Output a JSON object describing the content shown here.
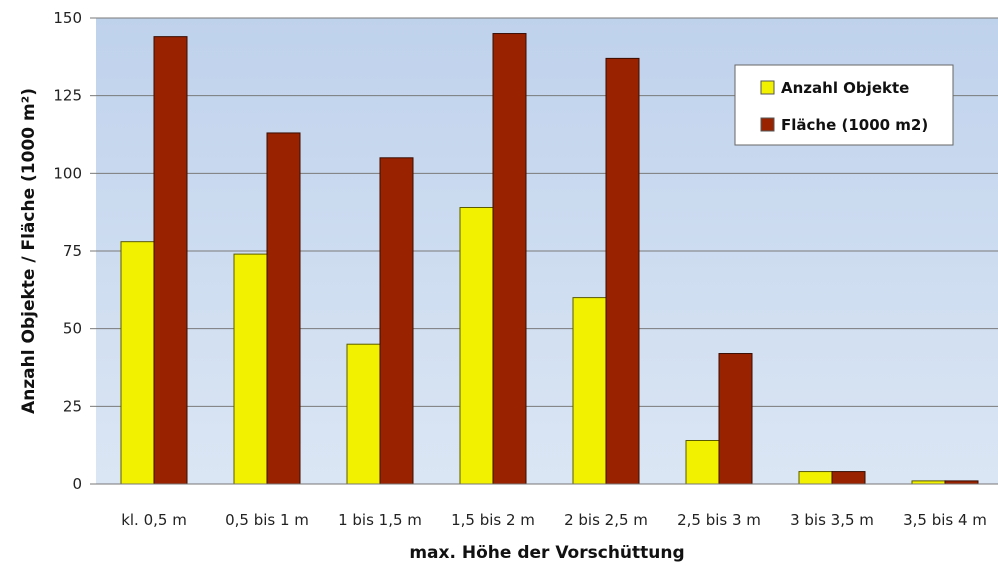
{
  "chart_data": {
    "type": "bar",
    "xlabel": "max. Höhe der Vorschüttung",
    "ylabel": "Anzahl Objekte / Fläche (1000 m²)",
    "ylim": [
      0,
      150
    ],
    "yticks": [
      "0",
      "25",
      "50",
      "75",
      "100",
      "125",
      "150"
    ],
    "grid": true,
    "legend_position": "top-right",
    "categories": [
      "kl. 0,5 m",
      "0,5 bis 1 m",
      "1 bis 1,5 m",
      "1,5 bis 2 m",
      "2 bis 2,5 m",
      "2,5 bis 3 m",
      "3 bis 3,5 m",
      "3,5 bis 4 m"
    ],
    "series": [
      {
        "name": "Anzahl Objekte",
        "color": "#f2f200",
        "values": [
          78,
          74,
          45,
          89,
          60,
          14,
          4,
          1
        ]
      },
      {
        "name": "Fläche (1000 m2)",
        "color": "#992200",
        "values": [
          144,
          113,
          105,
          145,
          137,
          42,
          4,
          1
        ]
      }
    ],
    "plot_background": "#c8d9ef"
  }
}
